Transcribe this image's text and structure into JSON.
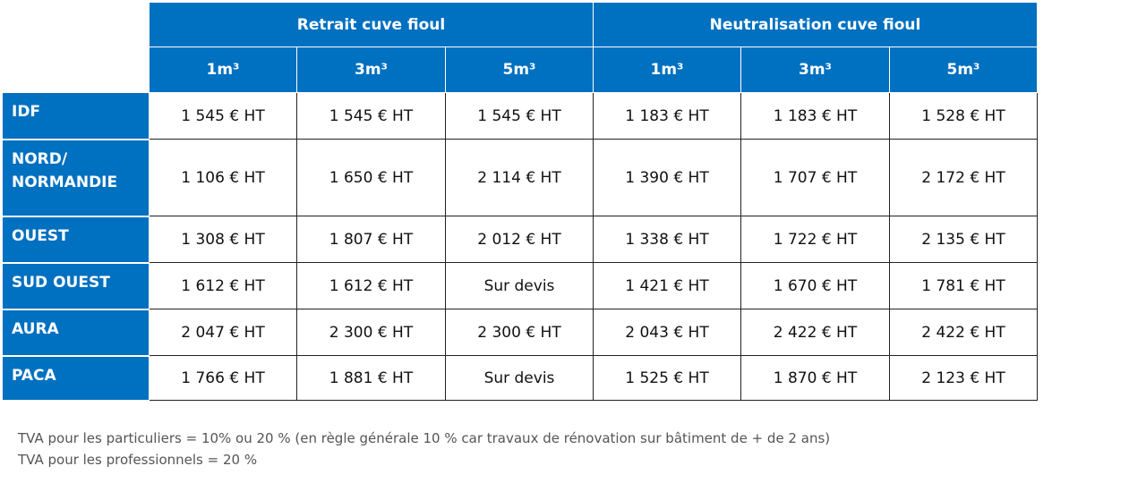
{
  "header": {
    "groups": [
      "Retrait cuve fioul",
      "Neutralisation cuve fioul"
    ],
    "sizes": [
      "1m³",
      "3m³",
      "5m³",
      "1m³",
      "3m³",
      "5m³"
    ]
  },
  "table": {
    "rows": [
      {
        "label": "IDF",
        "cells": [
          "1 545 € HT",
          "1 545 € HT",
          "1 545 € HT",
          "1 183 € HT",
          "1 183 € HT",
          "1 528 € HT"
        ]
      },
      {
        "label": "NORD/ NORMANDIE",
        "cells": [
          "1 106 € HT",
          "1 650 € HT",
          "2 114 € HT",
          "1 390 € HT",
          "1 707 € HT",
          "2 172 € HT"
        ]
      },
      {
        "label": "OUEST",
        "cells": [
          "1 308 € HT",
          "1 807 € HT",
          "2 012 € HT",
          "1 338 € HT",
          "1 722 € HT",
          "2 135 € HT"
        ]
      },
      {
        "label": "SUD OUEST",
        "cells": [
          "1 612 € HT",
          "1 612 € HT",
          "Sur devis",
          "1 421 € HT",
          "1 670 € HT",
          "1 781 € HT"
        ]
      },
      {
        "label": "AURA",
        "cells": [
          "2 047 € HT",
          "2 300 € HT",
          "2 300 € HT",
          "2 043 € HT",
          "2 422 € HT",
          "2 422 € HT"
        ]
      },
      {
        "label": "PACA",
        "cells": [
          "1 766 € HT",
          "1 881 € HT",
          "Sur devis",
          "1 525 € HT",
          "1 870 € HT",
          "2 123 € HT"
        ]
      }
    ]
  },
  "notes": [
    "TVA pour les particuliers = 10% ou 20 % (en règle générale 10 % car travaux de rénovation sur bâtiment de + de 2 ans)",
    "TVA pour les professionnels = 20 %"
  ]
}
